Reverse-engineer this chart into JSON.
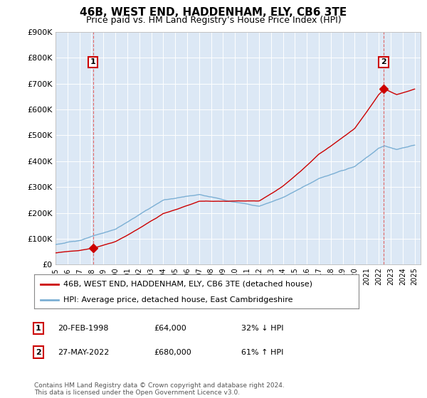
{
  "title": "46B, WEST END, HADDENHAM, ELY, CB6 3TE",
  "subtitle": "Price paid vs. HM Land Registry’s House Price Index (HPI)",
  "hpi_color": "#7bafd4",
  "price_color": "#cc0000",
  "marker_color": "#cc0000",
  "vline_color": "#dd6666",
  "background_color": "#ffffff",
  "plot_bg_color": "#dce8f5",
  "grid_color": "#ffffff",
  "ylim": [
    0,
    900000
  ],
  "xlim_start": 1995.0,
  "xlim_end": 2025.5,
  "yticks": [
    0,
    100000,
    200000,
    300000,
    400000,
    500000,
    600000,
    700000,
    800000,
    900000
  ],
  "ytick_labels": [
    "£0",
    "£100K",
    "£200K",
    "£300K",
    "£400K",
    "£500K",
    "£600K",
    "£700K",
    "£800K",
    "£900K"
  ],
  "xticks": [
    1995,
    1996,
    1997,
    1998,
    1999,
    2000,
    2001,
    2002,
    2003,
    2004,
    2005,
    2006,
    2007,
    2008,
    2009,
    2010,
    2011,
    2012,
    2013,
    2014,
    2015,
    2016,
    2017,
    2018,
    2019,
    2020,
    2021,
    2022,
    2023,
    2024,
    2025
  ],
  "sale1_x": 1998.13,
  "sale1_y": 64000,
  "sale1_label": "1",
  "sale2_x": 2022.4,
  "sale2_y": 680000,
  "sale2_label": "2",
  "legend_line1": "46B, WEST END, HADDENHAM, ELY, CB6 3TE (detached house)",
  "legend_line2": "HPI: Average price, detached house, East Cambridgeshire",
  "note1_num": "1",
  "note1_date": "20-FEB-1998",
  "note1_price": "£64,000",
  "note1_hpi": "32% ↓ HPI",
  "note2_num": "2",
  "note2_date": "27-MAY-2022",
  "note2_price": "£680,000",
  "note2_hpi": "61% ↑ HPI",
  "footer": "Contains HM Land Registry data © Crown copyright and database right 2024.\nThis data is licensed under the Open Government Licence v3.0."
}
